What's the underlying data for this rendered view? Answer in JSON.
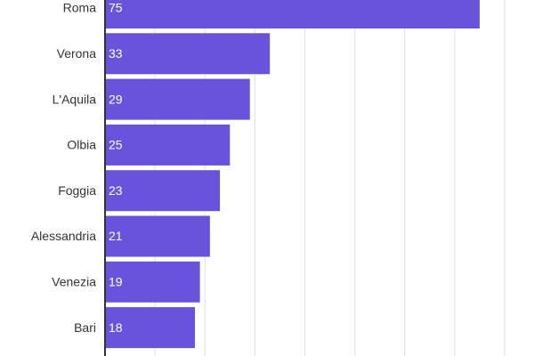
{
  "chart_data": {
    "type": "bar",
    "orientation": "horizontal",
    "categories": [
      "Roma",
      "Verona",
      "L'Aquila",
      "Olbia",
      "Foggia",
      "Alessandria",
      "Venezia",
      "Bari"
    ],
    "values": [
      75,
      33,
      29,
      25,
      23,
      21,
      19,
      18
    ],
    "title": "",
    "xlabel": "",
    "ylabel": "",
    "xlim": [
      0,
      80
    ],
    "grid": "vertical every 10",
    "bar_color": "#6a53dc",
    "axis_color": "#333333",
    "grid_color": "#e0e0e0"
  }
}
